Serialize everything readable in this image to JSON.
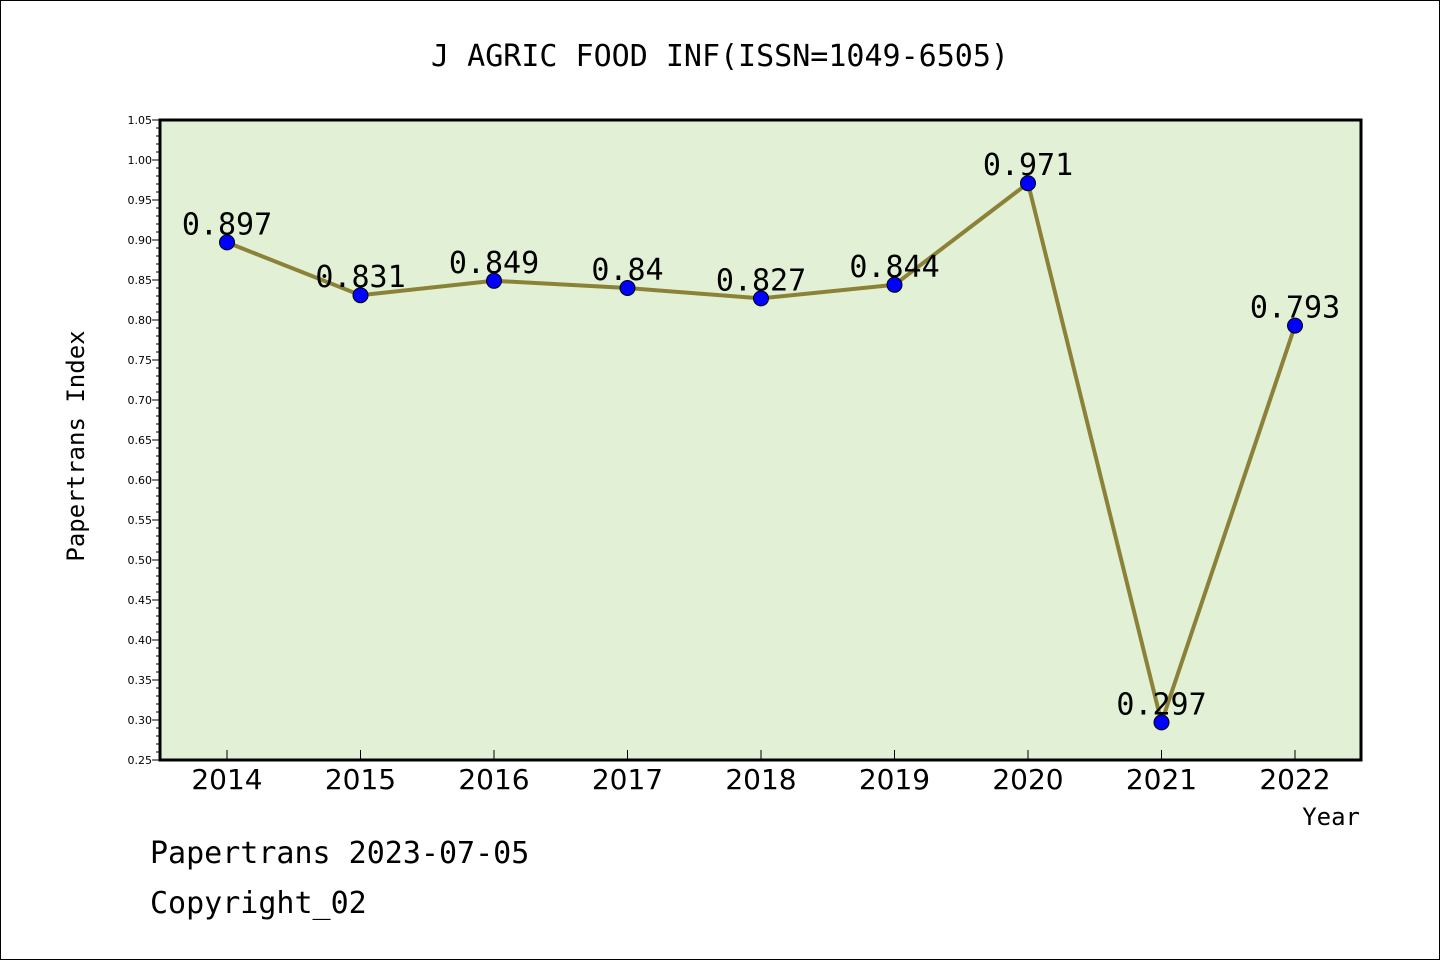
{
  "chart_data": {
    "type": "line",
    "title": "J AGRIC FOOD INF(ISSN=1049-6505)",
    "xlabel": "Year",
    "ylabel": "Papertrans Index",
    "categories": [
      "2014",
      "2015",
      "2016",
      "2017",
      "2018",
      "2019",
      "2020",
      "2021",
      "2022"
    ],
    "values": [
      0.897,
      0.831,
      0.849,
      0.84,
      0.827,
      0.844,
      0.971,
      0.297,
      0.793
    ],
    "data_labels": [
      "0.897",
      "0.831",
      "0.849",
      "0.84",
      "0.827",
      "0.844",
      "0.971",
      "0.297",
      "0.793"
    ],
    "ylim": [
      0.25,
      1.05
    ],
    "yticks": [
      "0.25",
      "0.30",
      "0.35",
      "0.40",
      "0.45",
      "0.50",
      "0.55",
      "0.60",
      "0.65",
      "0.70",
      "0.75",
      "0.80",
      "0.85",
      "0.90",
      "0.95",
      "1.00",
      "1.05"
    ],
    "grid": false,
    "legend": "none",
    "colors": {
      "plot_background": "#e2f0d5",
      "line": "#8b8237",
      "marker": "#0000ff"
    }
  },
  "footer": {
    "line1": "Papertrans 2023-07-05",
    "line2": "Copyright_02"
  }
}
